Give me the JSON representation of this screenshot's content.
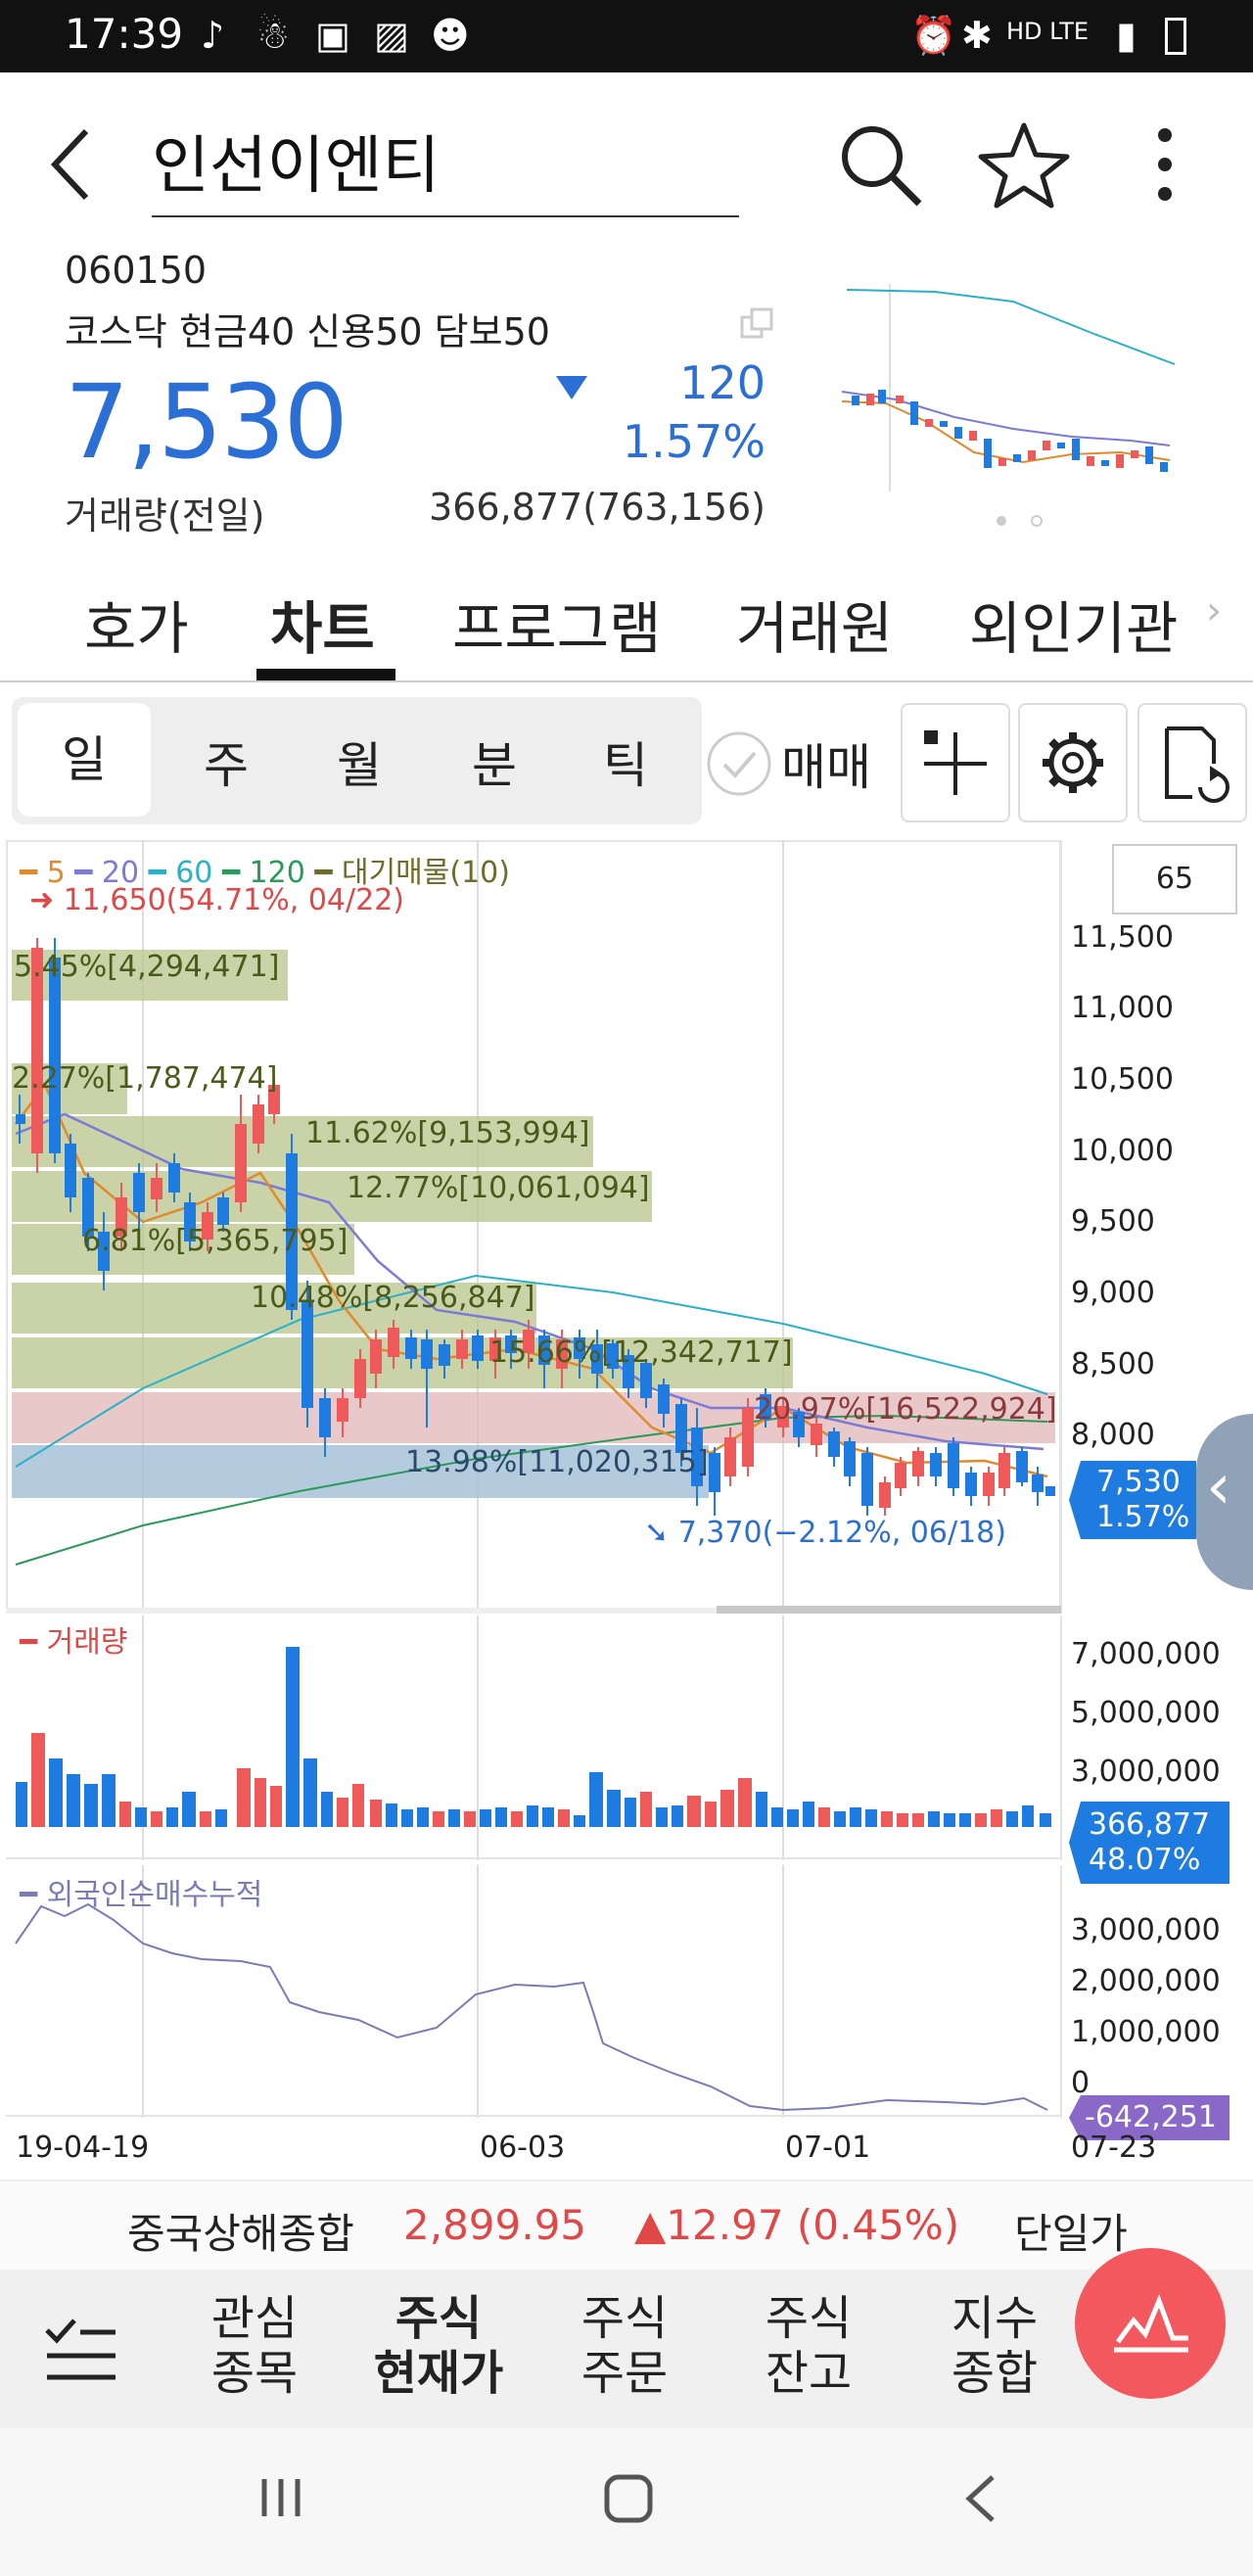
{
  "status": {
    "time": "17:39",
    "right": "HD LTE"
  },
  "header": {
    "title": "인선이엔티"
  },
  "stock": {
    "code": "060150",
    "margin_info": "코스닥 현금40 신용50 담보50",
    "price": "7,530",
    "change": "120",
    "change_pct": "1.57%",
    "volume_label": "거래량(전일)",
    "volume_value": "366,877(763,156)"
  },
  "tabs": [
    {
      "label": "호가"
    },
    {
      "label": "차트"
    },
    {
      "label": "프로그램"
    },
    {
      "label": "거래원"
    },
    {
      "label": "외인기관"
    }
  ],
  "periods": [
    {
      "label": "일"
    },
    {
      "label": "주"
    },
    {
      "label": "월"
    },
    {
      "label": "분"
    },
    {
      "label": "틱"
    }
  ],
  "trade_toggle": "매매",
  "chart": {
    "legend": [
      "5",
      "20",
      "60",
      "120",
      "대기매물(10)"
    ],
    "legend_colors": [
      "#e08a2e",
      "#7b7bd6",
      "#2ab0c8",
      "#2a9a5a",
      "#6d6d2a"
    ],
    "count_box": "65",
    "high_marker": "11,650(54.71%, 04/22)",
    "low_marker": "7,370(−2.12%, 06/18)",
    "price_ticks": [
      "11,500",
      "11,000",
      "10,500",
      "10,000",
      "9,500",
      "9,000",
      "8,500",
      "8,000"
    ],
    "supply_bars": [
      {
        "label": "5.45%[4,294,471]"
      },
      {
        "label": "2.27%[1,787,474]"
      },
      {
        "label": "11.62%[9,153,994]"
      },
      {
        "label": "12.77%[10,061,094]"
      },
      {
        "label": "6.81%[5,365,795]"
      },
      {
        "label": "10.48%[8,256,847]"
      },
      {
        "label": "15.66%[12,342,717]"
      },
      {
        "label": "20.97%[16,522,924]"
      },
      {
        "label": "13.98%[11,020,315]"
      }
    ],
    "price_badge": {
      "price": "7,530",
      "pct": "1.57%"
    },
    "volume_title": "거래량",
    "volume_ticks": [
      "7,000,000",
      "5,000,000",
      "3,000,000"
    ],
    "volume_badge": {
      "value": "366,877",
      "pct": "48.07%"
    },
    "foreign_title": "외국인순매수누적",
    "foreign_ticks": [
      "3,000,000",
      "2,000,000",
      "1,000,000",
      "0"
    ],
    "foreign_badge": "-642,251",
    "x_labels": [
      "19-04-19",
      "06-03",
      "07-01",
      "07-23"
    ]
  },
  "ticker": {
    "name": "중국상해종합",
    "value": "2,899.95",
    "change": "▲12.97 (0.45%)",
    "type": "단일가"
  },
  "bottom_nav": [
    {
      "line1": "관심",
      "line2": "종목"
    },
    {
      "line1": "주식",
      "line2": "현재가"
    },
    {
      "line1": "주식",
      "line2": "주문"
    },
    {
      "line1": "주식",
      "line2": "잔고"
    },
    {
      "line1": "지수",
      "line2": "종합"
    }
  ]
}
